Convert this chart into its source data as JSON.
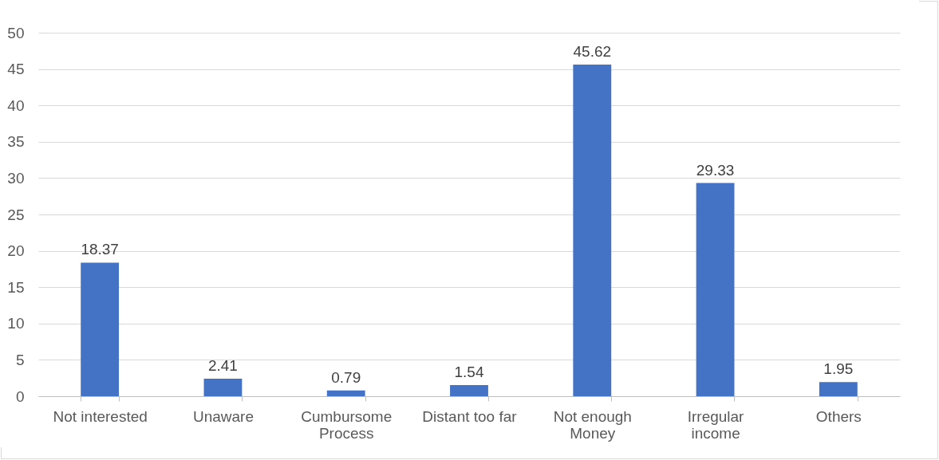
{
  "chart_data": {
    "type": "bar",
    "categories": [
      "Not interested",
      "Unaware",
      "Cumbursome Process",
      "Distant too far",
      "Not enough Money",
      "Irregular income",
      "Others"
    ],
    "values": [
      18.37,
      2.41,
      0.79,
      1.54,
      45.62,
      29.33,
      1.95
    ],
    "color": "#4472c4",
    "ylim": [
      0,
      50
    ],
    "yticks": [
      0,
      5,
      10,
      15,
      20,
      25,
      30,
      35,
      40,
      45,
      50
    ],
    "grid": "y",
    "data_labels": true
  }
}
